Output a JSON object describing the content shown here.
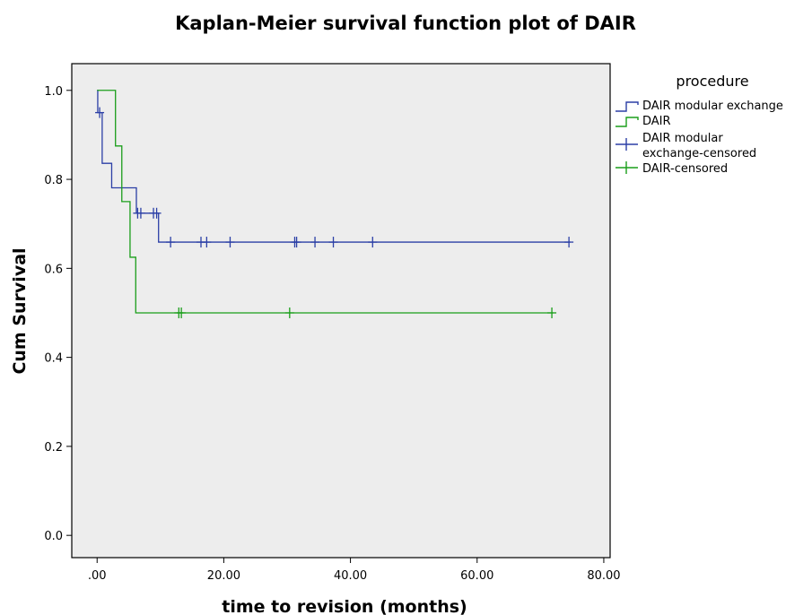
{
  "chart_data": {
    "type": "line",
    "title": "Kaplan-Meier survival function plot of DAIR",
    "xlabel": "time to revision (months)",
    "ylabel": "Cum Survival",
    "xlim": [
      -4,
      81
    ],
    "ylim": [
      -0.05,
      1.06
    ],
    "x_ticks": [
      0,
      20,
      40,
      60,
      80
    ],
    "x_tick_labels": [
      ".00",
      "20.00",
      "40.00",
      "60.00",
      "80.00"
    ],
    "y_ticks": [
      0,
      0.2,
      0.4,
      0.6,
      0.8,
      1.0
    ],
    "y_tick_labels": [
      "0.0",
      "0.2",
      "0.4",
      "0.6",
      "0.8",
      "1.0"
    ],
    "grid": false,
    "legend_title": "procedure",
    "legend_position": "right",
    "legend_entries": [
      "DAIR modular exchange",
      "DAIR",
      "DAIR modular exchange-censored",
      "DAIR-censored"
    ],
    "series": [
      {
        "name": "DAIR modular exchange",
        "color": "#2b3fa6",
        "steps": [
          [
            0.0,
            1.0
          ],
          [
            0.1,
            0.95
          ],
          [
            0.8,
            0.836
          ],
          [
            2.3,
            0.781
          ],
          [
            6.2,
            0.724
          ],
          [
            9.7,
            0.659
          ],
          [
            74.7,
            0.659
          ]
        ],
        "censored": [
          [
            0.4,
            0.95
          ],
          [
            6.4,
            0.724
          ],
          [
            6.9,
            0.724
          ],
          [
            8.9,
            0.724
          ],
          [
            9.4,
            0.724
          ],
          [
            11.6,
            0.659
          ],
          [
            16.4,
            0.659
          ],
          [
            17.3,
            0.659
          ],
          [
            21.0,
            0.659
          ],
          [
            31.2,
            0.659
          ],
          [
            31.5,
            0.659
          ],
          [
            34.4,
            0.659
          ],
          [
            37.3,
            0.659
          ],
          [
            43.5,
            0.659
          ],
          [
            74.5,
            0.659
          ]
        ]
      },
      {
        "name": "DAIR",
        "color": "#1a9e1a",
        "steps": [
          [
            0.0,
            1.0
          ],
          [
            2.9,
            0.875
          ],
          [
            3.9,
            0.75
          ],
          [
            5.2,
            0.625
          ],
          [
            6.1,
            0.5
          ],
          [
            72.0,
            0.5
          ]
        ],
        "censored": [
          [
            12.9,
            0.5
          ],
          [
            13.3,
            0.5
          ],
          [
            30.4,
            0.5
          ],
          [
            71.8,
            0.5
          ]
        ]
      }
    ]
  }
}
